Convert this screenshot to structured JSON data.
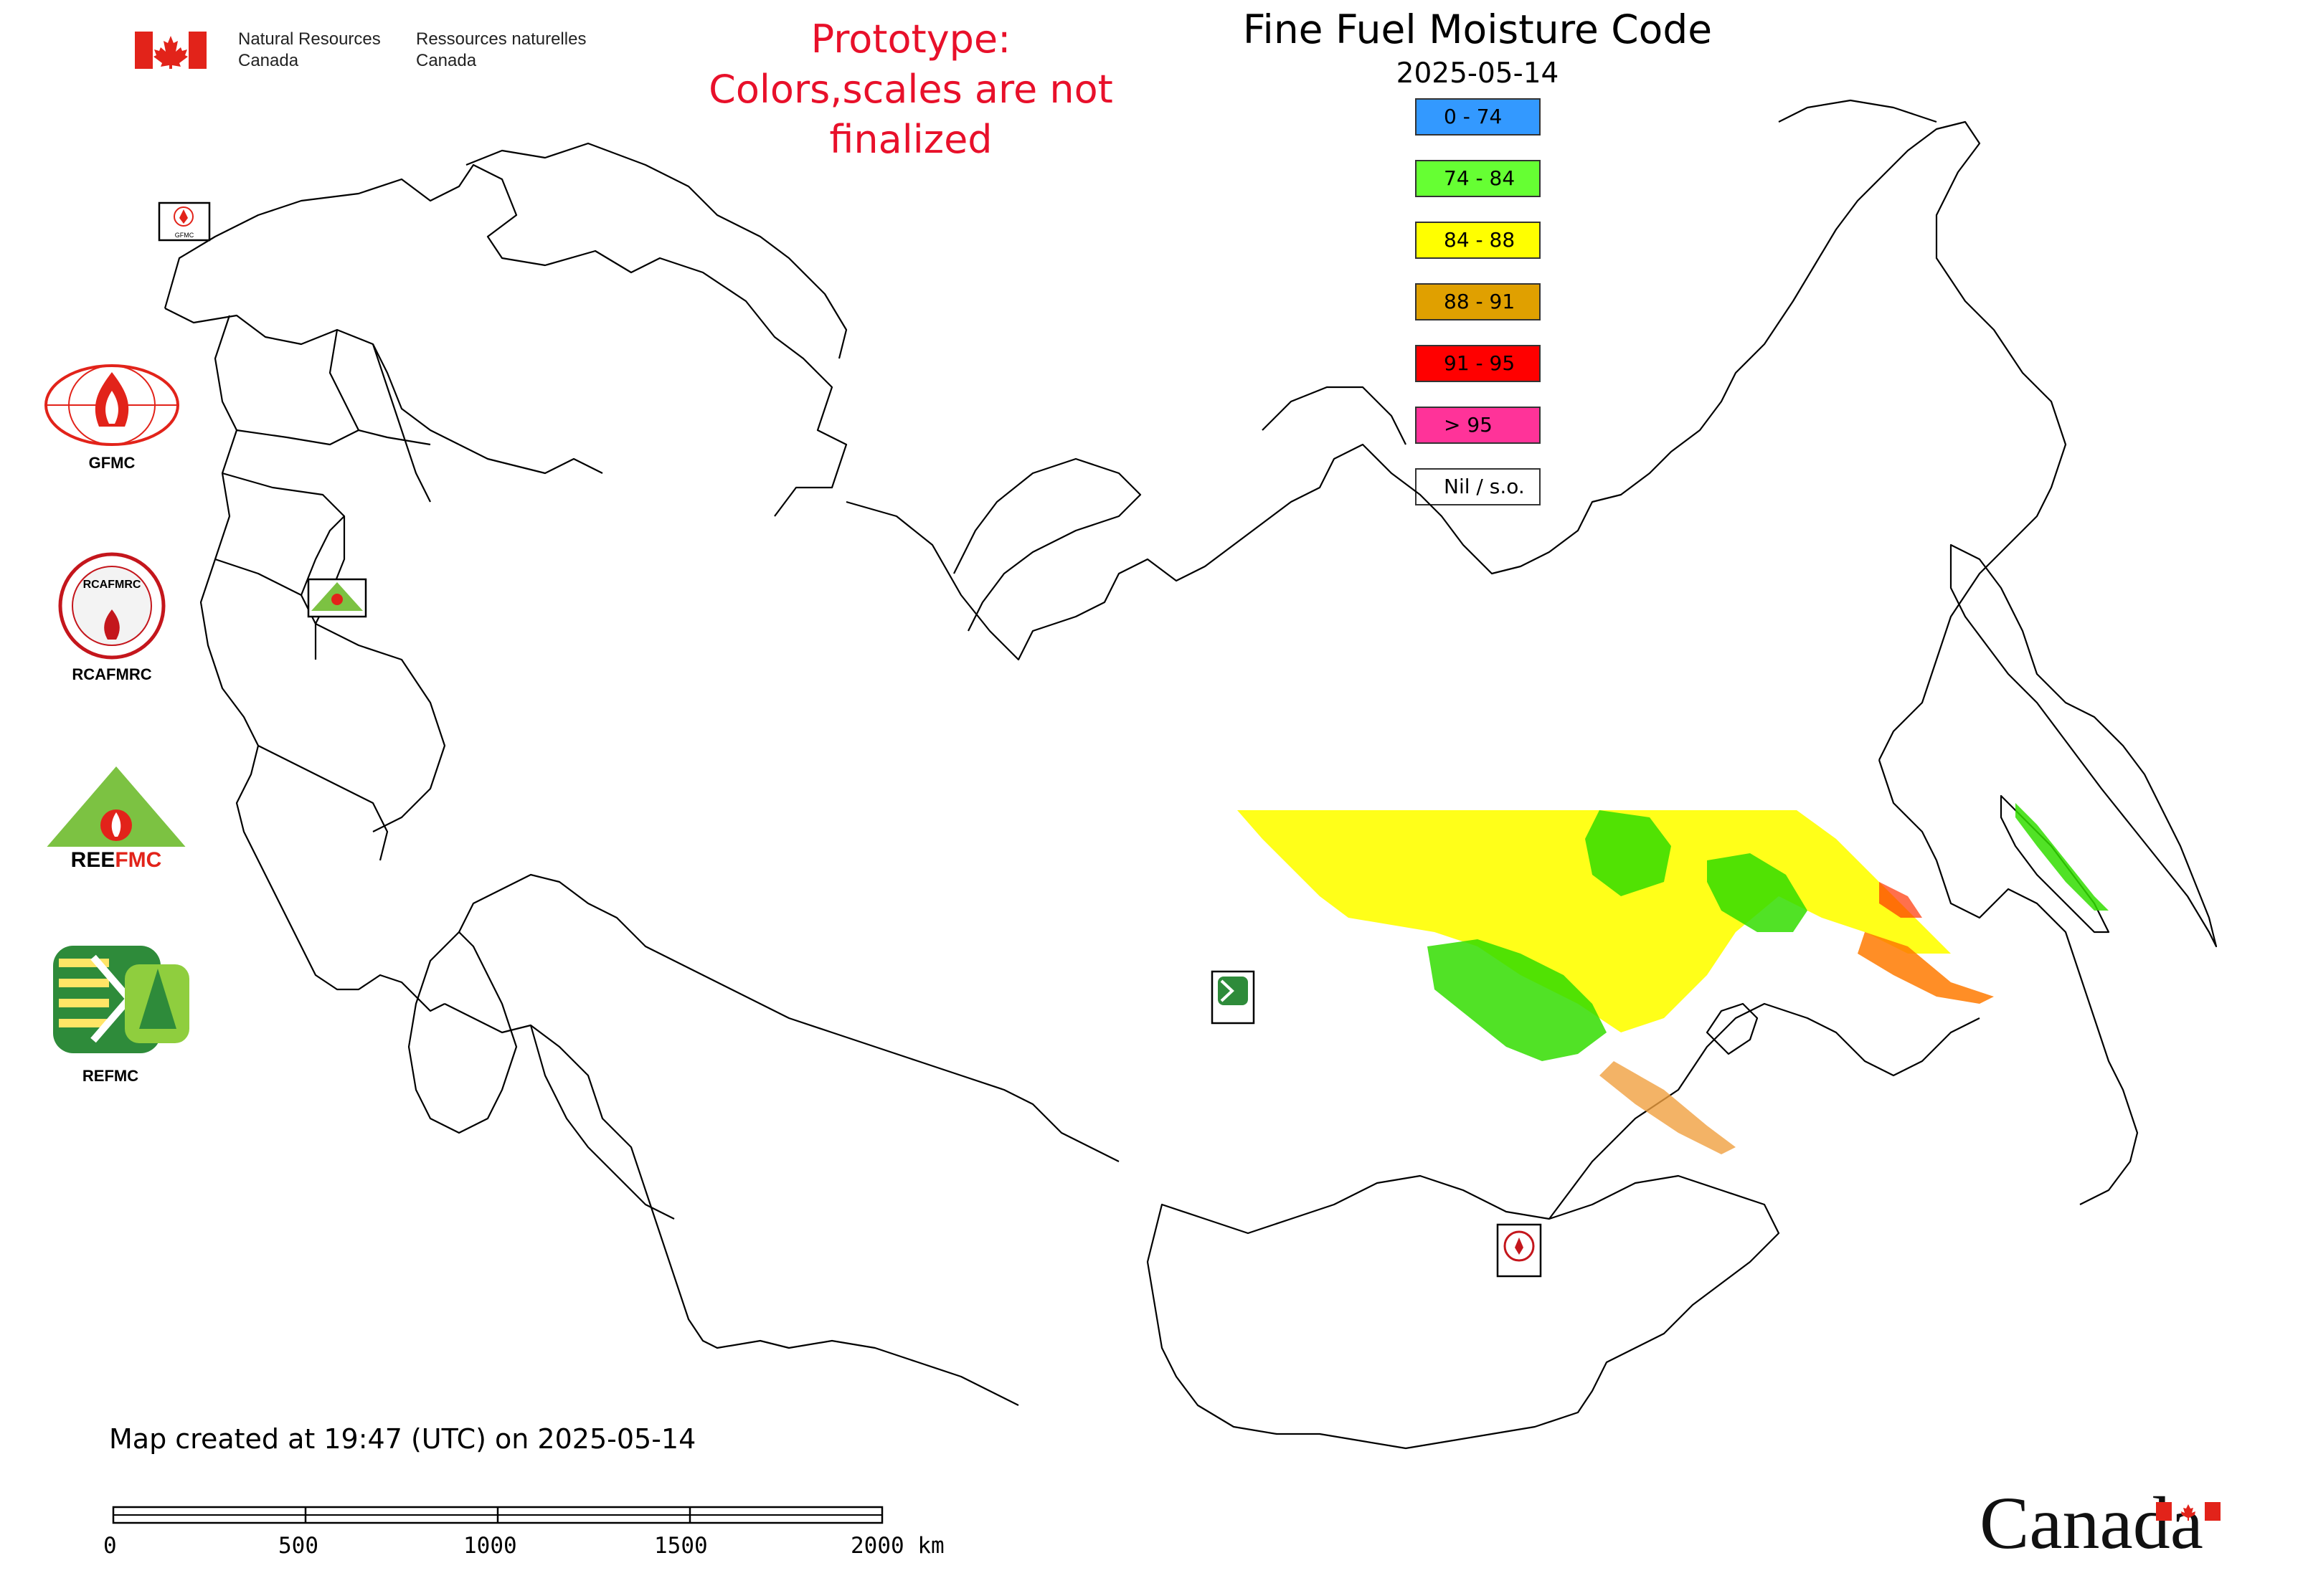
{
  "header": {
    "org_en": [
      "Natural Resources",
      "Canada"
    ],
    "org_fr": [
      "Ressources naturelles",
      "Canada"
    ],
    "notice": [
      "Prototype:",
      "Colors,scales are not finalized"
    ],
    "title": "Fine Fuel Moisture Code",
    "date": "2025-05-14"
  },
  "legend": [
    {
      "label": "0 - 74",
      "color": "#3399ff"
    },
    {
      "label": "74 - 84",
      "color": "#66ff33"
    },
    {
      "label": "84 - 88",
      "color": "#ffff00"
    },
    {
      "label": "88 - 91",
      "color": "#e0a000"
    },
    {
      "label": "91 - 95",
      "color": "#ff0000"
    },
    {
      "label": "> 95",
      "color": "#ff3399"
    },
    {
      "label": "Nil / s.o.",
      "color": "#ffffff"
    }
  ],
  "centers": [
    {
      "label": "GFMC",
      "icon": "gfmc-logo-icon",
      "color": "#e2231a"
    },
    {
      "label": "RCAFMRC",
      "icon": "rcafmrc-logo-icon",
      "color": "#c4161c"
    },
    {
      "label": "REEFMC",
      "icon": "reefmc-logo-icon",
      "color": "#7cc242"
    },
    {
      "label": "REFMC",
      "icon": "refmc-logo-icon",
      "color": "#2e8b3a"
    }
  ],
  "map_markers": [
    "GFMC",
    "REEFMC",
    "REFMC",
    "RCAFMRC"
  ],
  "footer": {
    "created": "Map created at 19:47 (UTC) on 2025-05-14",
    "scale_ticks": [
      "0",
      "500",
      "1000",
      "1500",
      "2000 km"
    ],
    "wordmark": "Canada"
  },
  "colors": {
    "notice": "#e8102a",
    "boundary": "#000000",
    "flag_red": "#e2231a"
  }
}
